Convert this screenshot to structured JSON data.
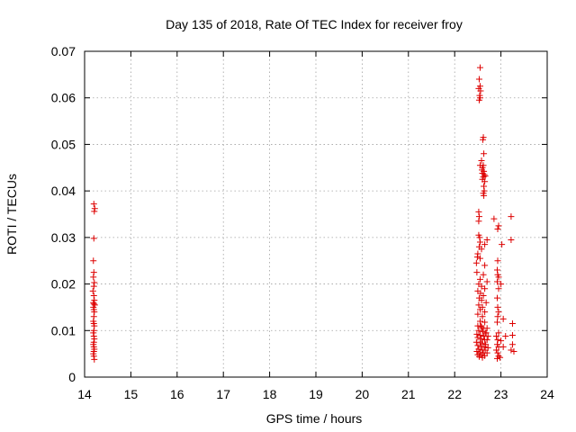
{
  "chart_data": {
    "type": "scatter",
    "title": "Day 135 of 2018, Rate Of TEC Index for receiver froy",
    "xlabel": "GPS time / hours",
    "ylabel": "ROTI / TECUs",
    "xlim": [
      14,
      24
    ],
    "ylim": [
      0,
      0.07
    ],
    "x_ticks": [
      "14",
      "15",
      "16",
      "17",
      "18",
      "19",
      "20",
      "21",
      "22",
      "23",
      "24"
    ],
    "y_ticks": [
      "0",
      "0.01",
      "0.02",
      "0.03",
      "0.04",
      "0.05",
      "0.06",
      "0.07"
    ],
    "grid": true,
    "marker": "plus",
    "point_color": "#dd0000",
    "series": [
      {
        "points": [
          [
            14.2,
            0.0372
          ],
          [
            14.22,
            0.0362
          ],
          [
            14.21,
            0.0356
          ],
          [
            14.2,
            0.0298
          ],
          [
            14.19,
            0.025
          ],
          [
            14.2,
            0.0225
          ],
          [
            14.19,
            0.0215
          ],
          [
            14.21,
            0.0203
          ],
          [
            14.2,
            0.0195
          ],
          [
            14.18,
            0.0185
          ],
          [
            14.2,
            0.0175
          ],
          [
            14.21,
            0.0165
          ],
          [
            14.19,
            0.016
          ],
          [
            14.2,
            0.0157
          ],
          [
            14.22,
            0.0155
          ],
          [
            14.19,
            0.015
          ],
          [
            14.2,
            0.0145
          ],
          [
            14.21,
            0.014
          ],
          [
            14.2,
            0.013
          ],
          [
            14.19,
            0.012
          ],
          [
            14.2,
            0.0115
          ],
          [
            14.21,
            0.011
          ],
          [
            14.2,
            0.01
          ],
          [
            14.19,
            0.0095
          ],
          [
            14.2,
            0.0088
          ],
          [
            14.21,
            0.0082
          ],
          [
            14.2,
            0.0075
          ],
          [
            14.19,
            0.007
          ],
          [
            14.2,
            0.0065
          ],
          [
            14.21,
            0.006
          ],
          [
            14.2,
            0.0055
          ],
          [
            14.19,
            0.005
          ],
          [
            14.2,
            0.0045
          ],
          [
            14.21,
            0.0038
          ],
          [
            22.55,
            0.0665
          ],
          [
            22.53,
            0.064
          ],
          [
            22.55,
            0.0625
          ],
          [
            22.52,
            0.062
          ],
          [
            22.56,
            0.0615
          ],
          [
            22.54,
            0.0605
          ],
          [
            22.55,
            0.06
          ],
          [
            22.53,
            0.0595
          ],
          [
            22.62,
            0.0515
          ],
          [
            22.61,
            0.051
          ],
          [
            22.63,
            0.048
          ],
          [
            22.58,
            0.0465
          ],
          [
            22.55,
            0.0455
          ],
          [
            22.62,
            0.0455
          ],
          [
            22.6,
            0.045
          ],
          [
            22.59,
            0.0445
          ],
          [
            22.63,
            0.0442
          ],
          [
            22.6,
            0.0438
          ],
          [
            22.64,
            0.0435
          ],
          [
            22.66,
            0.0432
          ],
          [
            22.62,
            0.043
          ],
          [
            22.6,
            0.0425
          ],
          [
            22.65,
            0.042
          ],
          [
            22.63,
            0.041
          ],
          [
            22.64,
            0.04
          ],
          [
            22.62,
            0.0395
          ],
          [
            22.63,
            0.039
          ],
          [
            22.52,
            0.0355
          ],
          [
            22.53,
            0.0345
          ],
          [
            22.52,
            0.0335
          ],
          [
            22.85,
            0.034
          ],
          [
            23.22,
            0.0345
          ],
          [
            22.95,
            0.0325
          ],
          [
            22.93,
            0.0318
          ],
          [
            22.52,
            0.0305
          ],
          [
            22.54,
            0.03
          ],
          [
            22.7,
            0.0295
          ],
          [
            23.22,
            0.0295
          ],
          [
            22.55,
            0.029
          ],
          [
            22.65,
            0.0285
          ],
          [
            23.02,
            0.0285
          ],
          [
            22.53,
            0.028
          ],
          [
            22.58,
            0.0275
          ],
          [
            22.5,
            0.0265
          ],
          [
            22.49,
            0.0258
          ],
          [
            22.55,
            0.0255
          ],
          [
            22.93,
            0.025
          ],
          [
            22.47,
            0.0245
          ],
          [
            22.65,
            0.024
          ],
          [
            22.92,
            0.023
          ],
          [
            22.48,
            0.0225
          ],
          [
            22.62,
            0.022
          ],
          [
            22.93,
            0.022
          ],
          [
            22.95,
            0.0215
          ],
          [
            22.55,
            0.021
          ],
          [
            22.7,
            0.0205
          ],
          [
            22.92,
            0.0205
          ],
          [
            23.0,
            0.02
          ],
          [
            22.52,
            0.02
          ],
          [
            22.58,
            0.0195
          ],
          [
            22.65,
            0.019
          ],
          [
            22.95,
            0.019
          ],
          [
            22.5,
            0.0185
          ],
          [
            22.56,
            0.018
          ],
          [
            22.62,
            0.0175
          ],
          [
            22.53,
            0.017
          ],
          [
            22.92,
            0.017
          ],
          [
            22.58,
            0.0165
          ],
          [
            22.68,
            0.016
          ],
          [
            22.52,
            0.0155
          ],
          [
            22.6,
            0.015
          ],
          [
            22.93,
            0.015
          ],
          [
            22.55,
            0.0145
          ],
          [
            22.65,
            0.014
          ],
          [
            22.95,
            0.014
          ],
          [
            22.5,
            0.0135
          ],
          [
            22.6,
            0.013
          ],
          [
            22.93,
            0.013
          ],
          [
            23.05,
            0.0125
          ],
          [
            22.55,
            0.012
          ],
          [
            22.65,
            0.0118
          ],
          [
            22.92,
            0.0118
          ],
          [
            23.25,
            0.0115
          ],
          [
            22.5,
            0.011
          ],
          [
            22.58,
            0.0108
          ],
          [
            22.62,
            0.0105
          ],
          [
            22.7,
            0.0105
          ],
          [
            22.52,
            0.01
          ],
          [
            22.6,
            0.0098
          ],
          [
            22.66,
            0.0095
          ],
          [
            22.95,
            0.0095
          ],
          [
            22.48,
            0.0092
          ],
          [
            22.55,
            0.009
          ],
          [
            22.63,
            0.0088
          ],
          [
            22.72,
            0.0088
          ],
          [
            22.9,
            0.0088
          ],
          [
            23.1,
            0.0088
          ],
          [
            23.25,
            0.009
          ],
          [
            22.5,
            0.0085
          ],
          [
            22.58,
            0.0082
          ],
          [
            22.65,
            0.008
          ],
          [
            22.7,
            0.008
          ],
          [
            22.93,
            0.008
          ],
          [
            23.0,
            0.0078
          ],
          [
            22.47,
            0.0075
          ],
          [
            22.55,
            0.0075
          ],
          [
            22.6,
            0.0072
          ],
          [
            22.67,
            0.007
          ],
          [
            22.92,
            0.007
          ],
          [
            23.25,
            0.007
          ],
          [
            22.5,
            0.0068
          ],
          [
            22.57,
            0.0065
          ],
          [
            22.64,
            0.0065
          ],
          [
            22.72,
            0.0063
          ],
          [
            22.95,
            0.0065
          ],
          [
            23.05,
            0.0065
          ],
          [
            22.52,
            0.006
          ],
          [
            22.6,
            0.0058
          ],
          [
            22.66,
            0.0058
          ],
          [
            22.9,
            0.0058
          ],
          [
            23.22,
            0.0058
          ],
          [
            22.48,
            0.0055
          ],
          [
            22.55,
            0.0052
          ],
          [
            22.62,
            0.0052
          ],
          [
            22.7,
            0.0052
          ],
          [
            22.93,
            0.0052
          ],
          [
            22.5,
            0.0048
          ],
          [
            22.58,
            0.0048
          ],
          [
            22.65,
            0.0046
          ],
          [
            22.95,
            0.0045
          ],
          [
            22.53,
            0.0044
          ],
          [
            22.6,
            0.0042
          ],
          [
            22.92,
            0.004
          ],
          [
            22.98,
            0.0042
          ],
          [
            23.28,
            0.0055
          ],
          [
            22.68,
            0.0095
          ],
          [
            22.56,
            0.011
          ]
        ]
      }
    ]
  }
}
